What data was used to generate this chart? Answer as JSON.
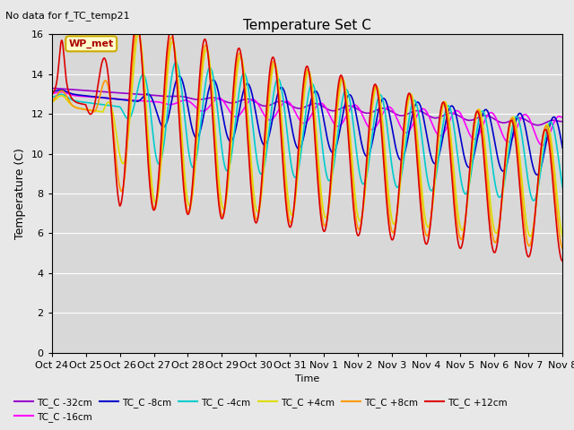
{
  "title": "Temperature Set C",
  "subtitle": "No data for f_TC_temp21",
  "xlabel": "Time",
  "ylabel": "Temperature (C)",
  "ylim": [
    0,
    16
  ],
  "xlim": [
    0,
    15
  ],
  "background_color": "#e8e8e8",
  "plot_bg_color": "#d8d8d8",
  "legend_box_text": "WP_met",
  "legend_box_color": "#ffffcc",
  "legend_box_border": "#ccaa00",
  "xtick_labels": [
    "Oct 24",
    "Oct 25",
    "Oct 26",
    "Oct 27",
    "Oct 28",
    "Oct 29",
    "Oct 30",
    "Oct 31",
    "Nov 1",
    "Nov 2",
    "Nov 3",
    "Nov 4",
    "Nov 5",
    "Nov 6",
    "Nov 7",
    "Nov 8"
  ],
  "series": [
    {
      "label": "TC_C -32cm",
      "color": "#9900cc",
      "lw": 1.2
    },
    {
      "label": "TC_C -16cm",
      "color": "#ff00ff",
      "lw": 1.2
    },
    {
      "label": "TC_C -8cm",
      "color": "#0000cc",
      "lw": 1.2
    },
    {
      "label": "TC_C -4cm",
      "color": "#00cccc",
      "lw": 1.2
    },
    {
      "label": "TC_C +4cm",
      "color": "#dddd00",
      "lw": 1.2
    },
    {
      "label": "TC_C +8cm",
      "color": "#ff9900",
      "lw": 1.2
    },
    {
      "label": "TC_C +12cm",
      "color": "#dd0000",
      "lw": 1.2
    }
  ]
}
